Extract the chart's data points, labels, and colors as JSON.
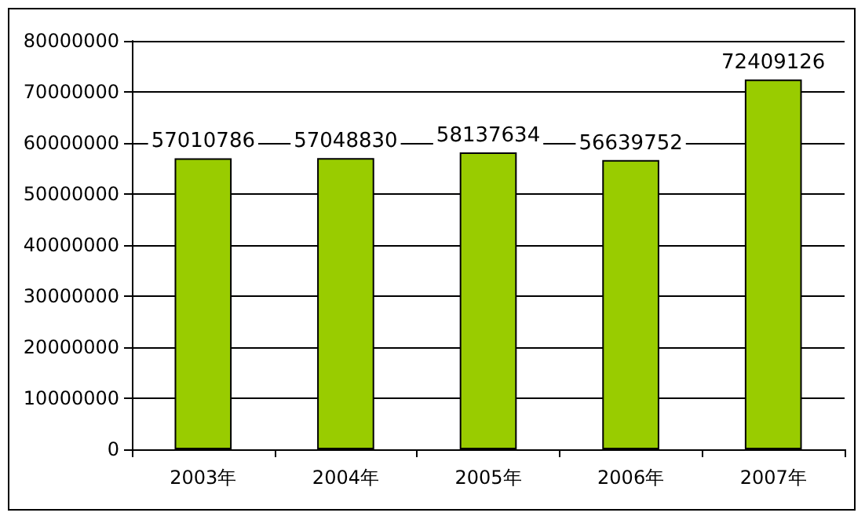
{
  "chart_data": {
    "type": "bar",
    "categories": [
      "2003年",
      "2004年",
      "2005年",
      "2006年",
      "2007年"
    ],
    "values": [
      57010786,
      57048830,
      58137634,
      56639752,
      72409126
    ],
    "color": "#99cc00",
    "data_labels": true,
    "ylim": [
      0,
      80000000
    ],
    "yticks": [
      0,
      10000000,
      20000000,
      30000000,
      40000000,
      50000000,
      60000000,
      70000000,
      80000000
    ],
    "grid": "y"
  }
}
